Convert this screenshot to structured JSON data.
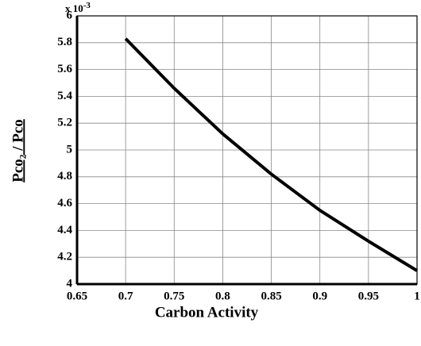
{
  "chart_data": {
    "type": "line",
    "x_label": "Carbon Activity",
    "y_label": "Pco₂ / Pco",
    "multiplier": {
      "base": "x 10",
      "exponent": "-3"
    },
    "x": [
      0.7,
      0.75,
      0.8,
      0.85,
      0.9,
      0.95,
      1.0
    ],
    "series": [
      {
        "name": null,
        "color": "#000000",
        "values": [
          5.83,
          5.46,
          5.12,
          4.82,
          4.55,
          4.32,
          4.1
        ]
      }
    ],
    "xlim": [
      0.65,
      1
    ],
    "xticks": [
      0.65,
      0.7,
      0.75,
      0.8,
      0.85,
      0.9,
      0.95,
      1
    ],
    "ylim": [
      4,
      6
    ],
    "yticks": [
      4,
      4.2,
      4.4,
      4.6,
      4.8,
      5,
      5.2,
      5.4,
      5.6,
      5.8,
      6
    ],
    "grid": true
  }
}
